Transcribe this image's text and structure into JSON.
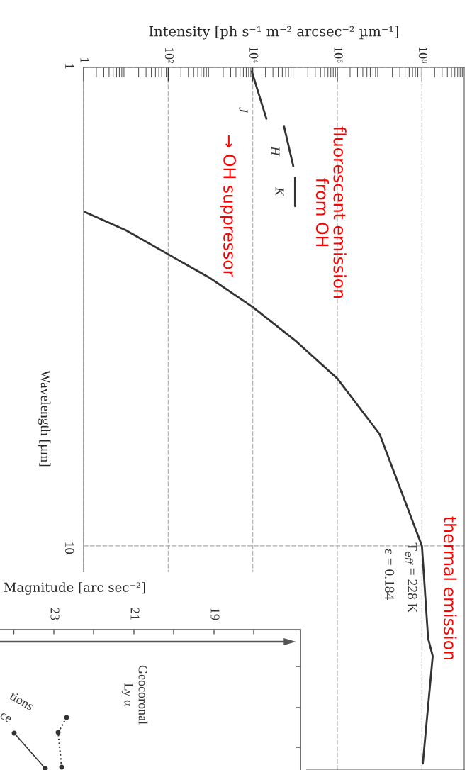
{
  "chart_data": [
    {
      "type": "line",
      "xlabel": "Intensity [ph s⁻¹ m⁻² arcsec⁻² µm⁻¹]",
      "ylabel": "Wavelength [µm]",
      "log": "xy",
      "xlim": [
        1,
        1000000000
      ],
      "xticks": [
        1,
        {
          "value": 100,
          "label": "10²"
        },
        {
          "value": 10000,
          "label": "10⁴"
        },
        {
          "value": 1000000,
          "label": "10⁶"
        },
        {
          "value": 100000000,
          "label": "10⁸"
        }
      ],
      "ylim": [
        29.4,
        1
      ],
      "yticks": [
        1,
        10
      ],
      "grid": true,
      "series": [
        {
          "color": "#333333",
          "x": [
            1,
            10,
            1000,
            10000,
            100000,
            1000000,
            10000000,
            100000000,
            140000000,
            180000000,
            105000000
          ],
          "values": [
            2.0,
            2.19,
            2.76,
            3.17,
            3.72,
            4.47,
            5.84,
            10,
            15.6,
            17,
            28.5
          ]
        },
        {
          "color": "#333333",
          "x": [
            9500,
            21000
          ],
          "values": [
            1.02,
            1.28
          ]
        },
        {
          "color": "#333333",
          "x": [
            55000,
            91000
          ],
          "values": [
            1.33,
            1.61
          ]
        },
        {
          "color": "#333333",
          "x": [
            100000,
            100000
          ],
          "values": [
            1.7,
            1.95
          ]
        }
      ],
      "annotations": [
        "J",
        "H",
        "K",
        "fluorescent emission\nfrom OH",
        "→ OH suppressor",
        "thermal emission",
        "T$_{eff}$ = 228 K",
        "ε = 0.184"
      ]
    },
    {
      "type": "other",
      "xlabel": "Magnitude [arc sec⁻²]",
      "annotations": [
        "19",
        "21",
        "23",
        "Geocoronal\nLy α",
        "tions",
        "ce"
      ]
    }
  ]
}
